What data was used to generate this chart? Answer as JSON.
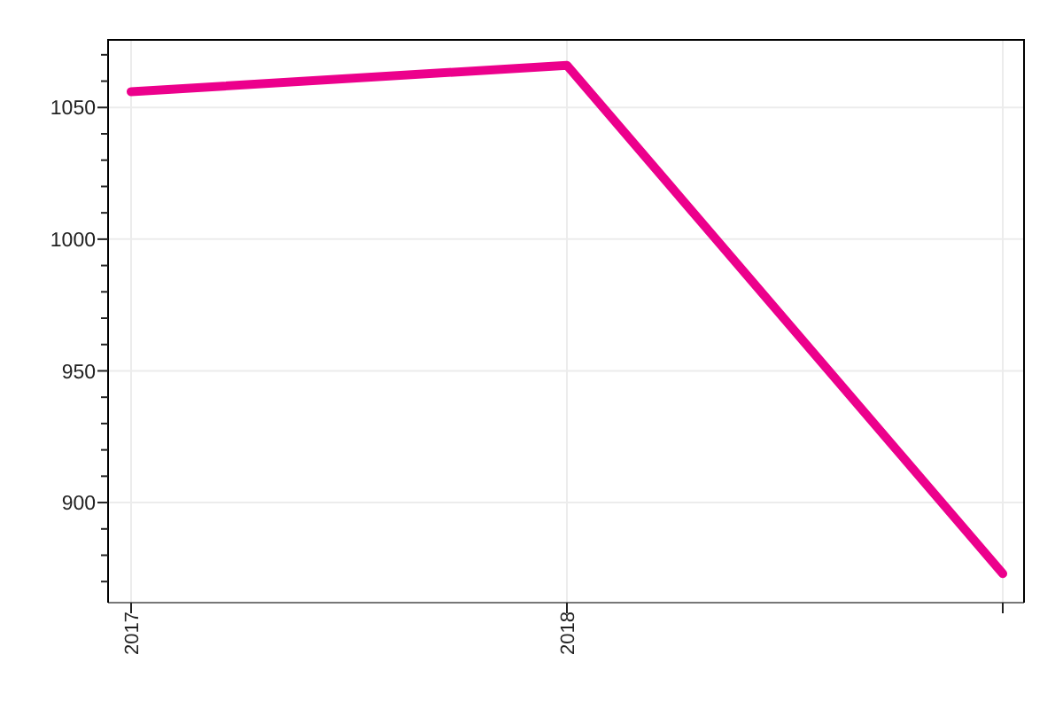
{
  "chart_data": {
    "type": "line",
    "categories": [
      "2017",
      "2018",
      null
    ],
    "series": [
      {
        "color": "#ec008c",
        "values": [
          1056,
          1066,
          873
        ]
      }
    ],
    "ylim": [
      862,
      1076
    ],
    "yticks": [
      {
        "value": 870,
        "label": null
      },
      {
        "value": 880,
        "label": null
      },
      {
        "value": 890,
        "label": null
      },
      900,
      {
        "value": 910,
        "label": null
      },
      {
        "value": 920,
        "label": null
      },
      {
        "value": 930,
        "label": null
      },
      {
        "value": 940,
        "label": null
      },
      950,
      {
        "value": 960,
        "label": null
      },
      {
        "value": 970,
        "label": null
      },
      {
        "value": 980,
        "label": null
      },
      {
        "value": 990,
        "label": null
      },
      1000,
      {
        "value": 1010,
        "label": null
      },
      {
        "value": 1020,
        "label": null
      },
      {
        "value": 1030,
        "label": null
      },
      {
        "value": 1040,
        "label": null
      },
      1050,
      {
        "value": 1060,
        "label": null
      },
      {
        "value": 1070,
        "label": null
      }
    ],
    "grid": true,
    "marker": "none"
  }
}
